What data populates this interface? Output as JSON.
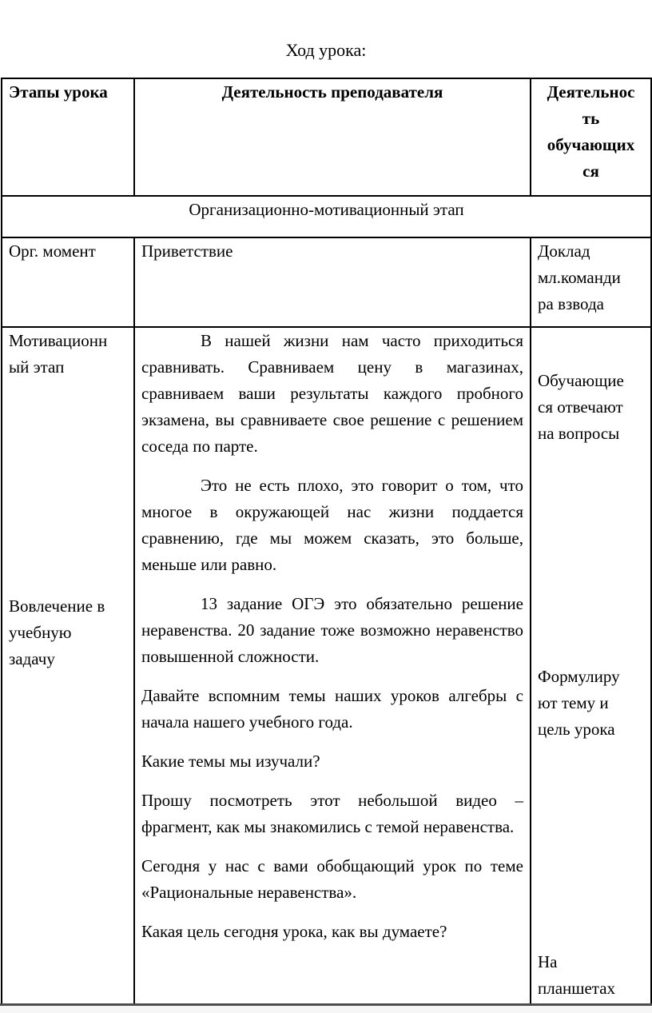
{
  "page": {
    "title": "Ход урока:"
  },
  "table": {
    "headers": {
      "stages": "Этапы урока",
      "teacher": "Деятельность преподавателя",
      "students": "Деятельнос\nть\nобучающих\nся"
    },
    "section_row": "Организационно-мотивационный этап",
    "rows": [
      {
        "stage": "Орг. момент",
        "teacher": "Приветствие",
        "students": "Доклад\nмл.команди\nра взвода"
      },
      {
        "stage_blocks": [
          "Мотивационн\nый этап",
          "Вовлечение в\nучебную\nзадачу"
        ],
        "teacher_paragraphs": [
          "В нашей жизни нам часто приходиться сравнивать. Сравниваем цену в магазинах, сравниваем ваши результаты каждого пробного экзамена, вы сравниваете свое решение с решением соседа по парте.",
          "Это не есть плохо, это говорит о том, что многое в окружающей нас жизни поддается сравнению, где мы можем сказать, это больше, меньше или равно.",
          "13 задание ОГЭ это обязательно решение неравенства. 20 задание тоже возможно неравенство повышенной сложности.",
          "Давайте вспомним темы наших уроков алгебры с начала нашего учебного года.",
          "Какие темы мы изучали?",
          "Прошу посмотреть этот небольшой видео – фрагмент, как мы знакомились с темой неравенства.",
          "Сегодня у нас с вами обобщающий  урок по теме «Рациональные неравенства».",
          "Какая цель сегодня урока, как вы думаете?"
        ],
        "student_blocks": [
          "Обучающие\nся отвечают\nна вопросы",
          "Формулиру\nют тему и\nцель урока",
          "На\nпланшетах"
        ]
      }
    ]
  },
  "colors": {
    "text": "#000000",
    "border": "#000000",
    "page_background": "#ffffff",
    "page_edge_line": "#4d4d4d"
  }
}
